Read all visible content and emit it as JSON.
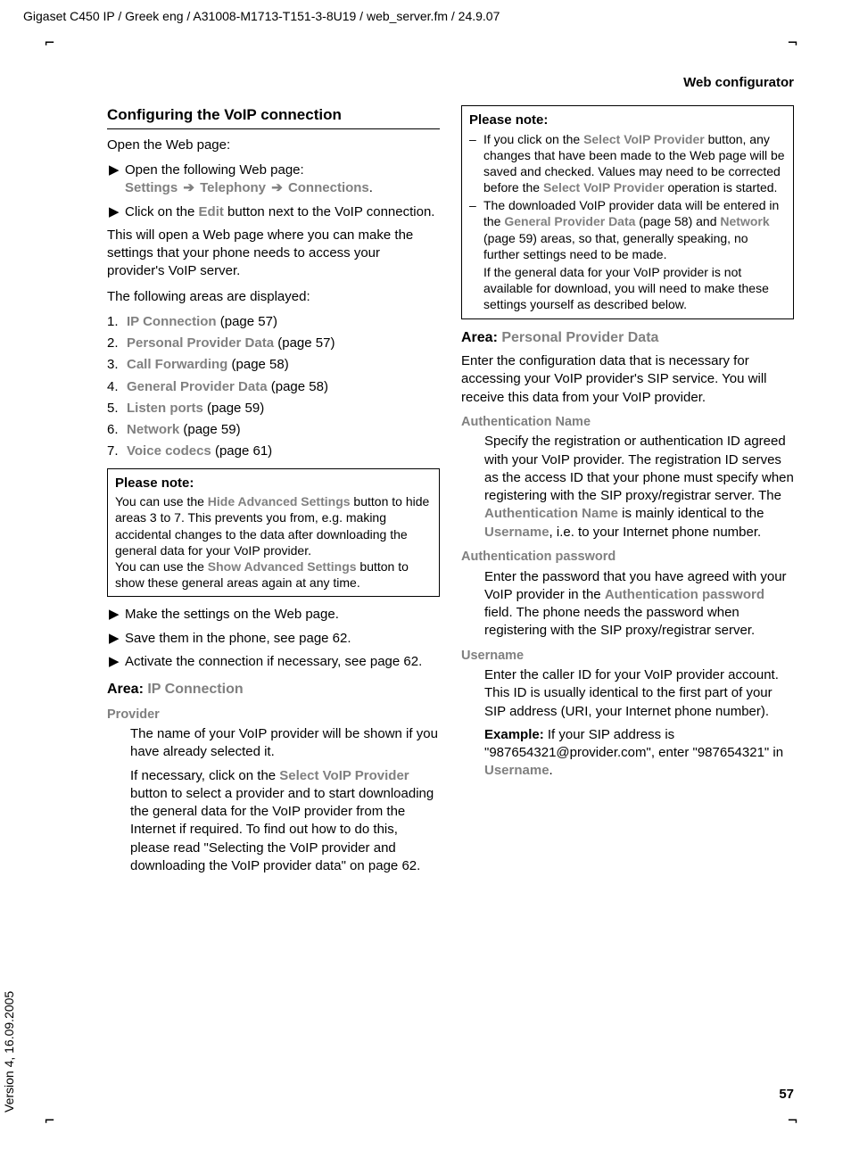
{
  "meta": {
    "header": "Gigaset C450 IP / Greek eng / A31008-M1713-T151-3-8U19 / web_server.fm / 24.9.07",
    "section": "Web configurator",
    "version": "Version 4, 16.09.2005",
    "pageNumber": "57"
  },
  "crop": {
    "tl": "⌐",
    "tr": "¬",
    "bl": "⌐",
    "br": "¬"
  },
  "left": {
    "heading": "Configuring the VoIP connection",
    "openLine": "Open the Web page:",
    "step1_prefix": "Open the following Web page:",
    "nav1": "Settings",
    "nav2": "Telephony",
    "nav3": "Connections",
    "step2_a": "Click on the ",
    "step2_edit": "Edit",
    "step2_b": " button next to the VoIP connection.",
    "para1": "This will open a Web page where you can make the settings that your phone needs to access your provider's VoIP server.",
    "para2": "The following areas are displayed:",
    "list": [
      {
        "n": "1.",
        "label": "IP Connection",
        "page": " (page 57)"
      },
      {
        "n": "2.",
        "label": "Personal Provider Data",
        "page": " (page 57)"
      },
      {
        "n": "3.",
        "label": "Call Forwarding",
        "page": " (page 58)"
      },
      {
        "n": "4.",
        "label": "General Provider Data",
        "page": " (page 58)"
      },
      {
        "n": "5.",
        "label": "Listen ports",
        "page": " (page 59)"
      },
      {
        "n": "6.",
        "label": "Network",
        "page": " (page 59)"
      },
      {
        "n": "7.",
        "label": "Voice codecs",
        "page": " (page 61)"
      }
    ],
    "note": {
      "title": "Please note:",
      "l1a": "You can use the ",
      "l1b": "Hide Advanced Settings",
      "l1c": " button to hide areas 3 to 7. This prevents you from, e.g. making accidental changes to the data after downloading the general data for your VoIP provider.",
      "l2a": "You can use the ",
      "l2b": "Show Advanced Settings",
      "l2c": " button to show these general areas again at any time."
    },
    "actions": [
      "Make the settings on the Web page.",
      "Save them in the phone, see page 62.",
      "Activate the connection if necessary, see page 62."
    ],
    "area1": {
      "label": "Area: ",
      "name": "IP Connection"
    },
    "provider": {
      "label": "Provider",
      "p1": "The name of your VoIP provider will be shown if you have already selected it.",
      "p2a": "If necessary, click on the ",
      "p2b": "Select VoIP Provider",
      "p2c": " button to select a provider and to start downloading the general data for the VoIP provider from the Internet if required. To find out how to do this, please read \"Selecting the VoIP provider and downloading the VoIP provider data\" on page 62."
    }
  },
  "right": {
    "note": {
      "title": "Please note:",
      "d1a": "If you click on the ",
      "d1b": "Select VoIP Provider",
      "d1c": " button, any changes that have been made to the Web page will be saved and checked. Values may need to be corrected before the ",
      "d1d": "Select VoIP Provider",
      "d1e": " operation is started.",
      "d2a": "The downloaded VoIP provider data will be entered in the ",
      "d2b": "General Provider Data",
      "d2c": " (page 58) and ",
      "d2d": "Network",
      "d2e": " (page 59) areas, so that, generally speaking, no further settings need to be made.",
      "d2f": "If the general data for your VoIP provider is not available for download, you will need to make these settings yourself as described below."
    },
    "area2": {
      "label": "Area: ",
      "name": "Personal Provider Data"
    },
    "intro": "Enter the configuration data that is necessary for accessing your VoIP provider's SIP service. You will receive this data from your VoIP provider.",
    "authName": {
      "label": "Authentication Name",
      "p_a": "Specify the registration or authentication ID agreed with your VoIP provider. The registration ID serves as the access ID that your phone must specify when registering with the SIP proxy/registrar server. The ",
      "p_b": "Authentication Name",
      "p_c": " is mainly identical to the ",
      "p_d": "Username",
      "p_e": ", i.e. to your Internet phone number."
    },
    "authPass": {
      "label": "Authentication password",
      "p_a": "Enter the password that you have agreed with your VoIP provider in the ",
      "p_b": "Authentication password",
      "p_c": " field. The phone needs the password when registering with the SIP proxy/registrar server."
    },
    "username": {
      "label": "Username",
      "p1": "Enter the caller ID for your VoIP provider account. This ID is usually identical to the first part of your SIP address (URI, your Internet phone number).",
      "ex_label": "Example:",
      "ex_a": " If your SIP address is \"987654321@provider.com\", enter \"987654321\" in ",
      "ex_b": "Username",
      "ex_c": "."
    }
  }
}
